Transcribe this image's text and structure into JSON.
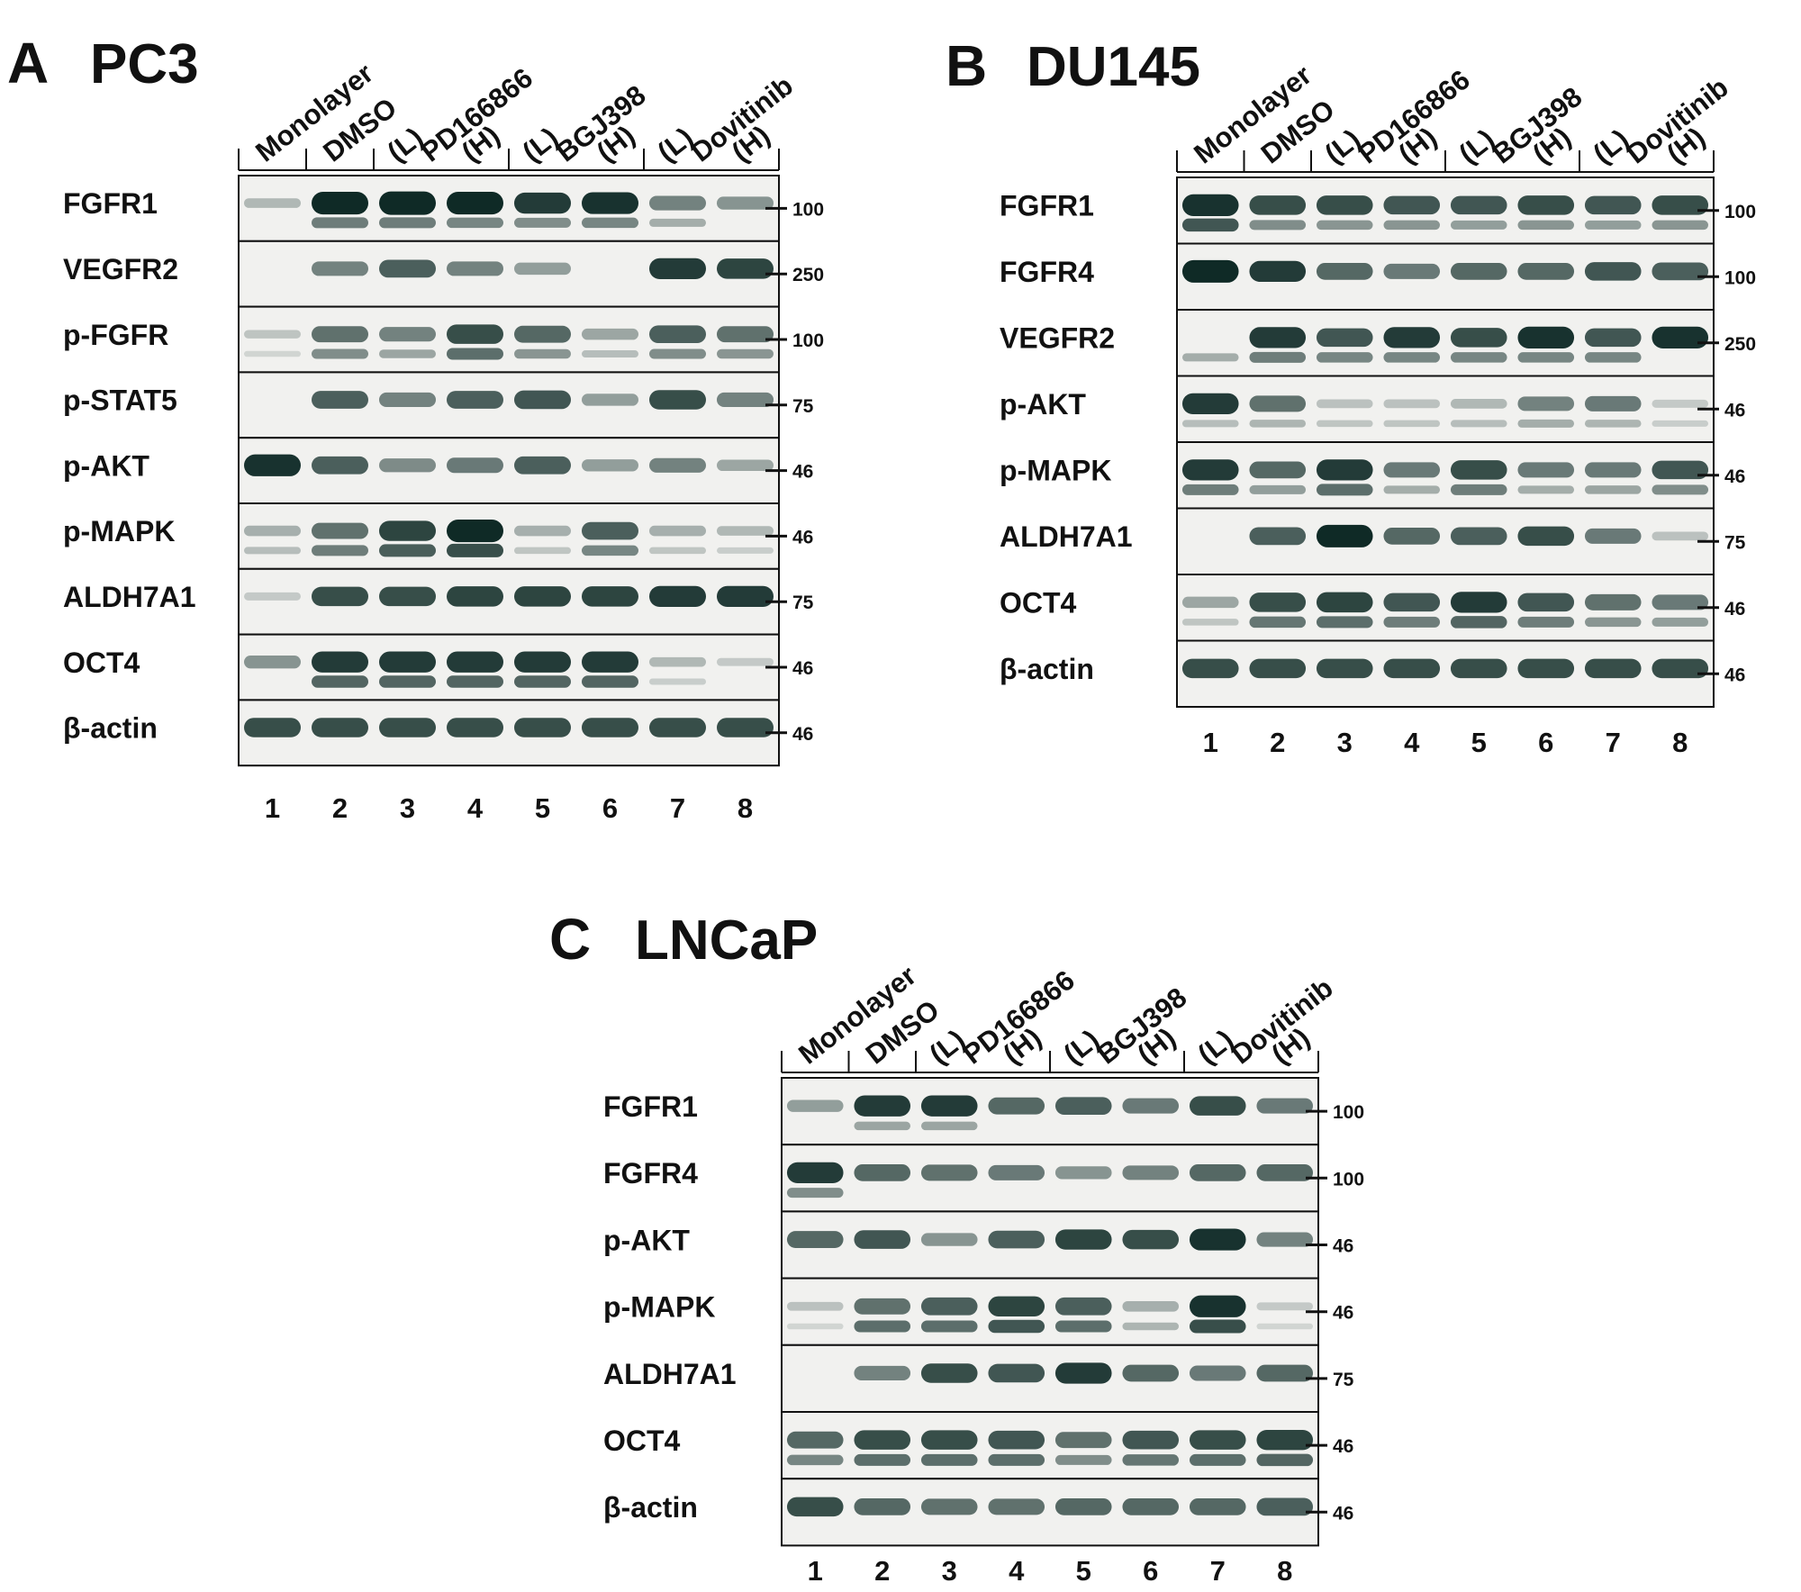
{
  "panels": [
    {
      "letter": "A",
      "cell_line": "PC3",
      "headers": [
        "Monolayer",
        "DMSO",
        "(L)",
        "PD166866",
        "(H)",
        "(L)",
        "BGJ398",
        "(H)",
        "(L)",
        "Dovitinib",
        "(H)"
      ],
      "lanes": [
        "1",
        "2",
        "3",
        "4",
        "5",
        "6",
        "7",
        "8"
      ],
      "rows": [
        {
          "label": "FGFR1",
          "mw": "100",
          "intensity": [
            0.15,
            0.95,
            1.0,
            0.95,
            0.85,
            0.9,
            0.45,
            0.35
          ],
          "secondary": [
            0.0,
            0.6,
            0.6,
            0.55,
            0.5,
            0.55,
            0.3,
            0.0
          ]
        },
        {
          "label": "VEGFR2",
          "mw": "250",
          "intensity": [
            0.0,
            0.45,
            0.65,
            0.45,
            0.3,
            0.0,
            0.85,
            0.8
          ],
          "secondary": [
            0,
            0,
            0,
            0,
            0,
            0,
            0,
            0
          ]
        },
        {
          "label": "p-FGFR",
          "mw": "100",
          "intensity": [
            0.08,
            0.55,
            0.45,
            0.75,
            0.6,
            0.25,
            0.65,
            0.55
          ],
          "secondary": [
            0.05,
            0.5,
            0.35,
            0.7,
            0.45,
            0.2,
            0.5,
            0.45
          ]
        },
        {
          "label": "p-STAT5",
          "mw": "75",
          "intensity": [
            0.0,
            0.65,
            0.45,
            0.65,
            0.7,
            0.3,
            0.75,
            0.45
          ],
          "secondary": [
            0,
            0,
            0,
            0,
            0,
            0,
            0,
            0
          ]
        },
        {
          "label": "p-AKT",
          "mw": "46",
          "intensity": [
            0.9,
            0.65,
            0.4,
            0.5,
            0.65,
            0.3,
            0.45,
            0.25
          ],
          "secondary": [
            0,
            0,
            0,
            0,
            0,
            0,
            0,
            0
          ]
        },
        {
          "label": "p-MAPK",
          "mw": "46",
          "intensity": [
            0.2,
            0.55,
            0.8,
            0.95,
            0.2,
            0.65,
            0.2,
            0.15
          ],
          "secondary": [
            0.2,
            0.6,
            0.8,
            0.9,
            0.15,
            0.55,
            0.15,
            0.1
          ]
        },
        {
          "label": "ALDH7A1",
          "mw": "75",
          "intensity": [
            0.05,
            0.75,
            0.75,
            0.8,
            0.8,
            0.8,
            0.85,
            0.85
          ],
          "secondary": [
            0,
            0,
            0,
            0,
            0,
            0,
            0,
            0
          ]
        },
        {
          "label": "OCT4",
          "mw": "46",
          "intensity": [
            0.35,
            0.85,
            0.85,
            0.85,
            0.85,
            0.85,
            0.15,
            0.05
          ],
          "secondary": [
            0.0,
            0.75,
            0.75,
            0.75,
            0.75,
            0.75,
            0.1,
            0.0
          ]
        },
        {
          "label": "β-actin",
          "mw": "46",
          "intensity": [
            0.75,
            0.75,
            0.75,
            0.75,
            0.75,
            0.75,
            0.75,
            0.75
          ],
          "secondary": [
            0,
            0,
            0,
            0,
            0,
            0,
            0,
            0
          ]
        }
      ]
    },
    {
      "letter": "B",
      "cell_line": "DU145",
      "headers": [
        "Monolayer",
        "DMSO",
        "(L)",
        "PD166866",
        "(H)",
        "(L)",
        "BGJ398",
        "(H)",
        "(L)",
        "Dovitinib",
        "(H)"
      ],
      "lanes": [
        "1",
        "2",
        "3",
        "4",
        "5",
        "6",
        "7",
        "8"
      ],
      "rows": [
        {
          "label": "FGFR1",
          "mw": "100",
          "intensity": [
            0.9,
            0.75,
            0.75,
            0.7,
            0.7,
            0.75,
            0.7,
            0.75
          ],
          "secondary": [
            0.85,
            0.5,
            0.45,
            0.45,
            0.4,
            0.45,
            0.4,
            0.45
          ]
        },
        {
          "label": "FGFR4",
          "mw": "100",
          "intensity": [
            0.95,
            0.85,
            0.6,
            0.5,
            0.6,
            0.6,
            0.7,
            0.65
          ],
          "secondary": [
            0,
            0,
            0,
            0,
            0,
            0,
            0,
            0
          ]
        },
        {
          "label": "VEGFR2",
          "mw": "250",
          "intensity": [
            0.0,
            0.85,
            0.7,
            0.85,
            0.75,
            0.9,
            0.7,
            0.9
          ],
          "secondary": [
            0.3,
            0.6,
            0.55,
            0.55,
            0.55,
            0.55,
            0.55,
            0.0
          ]
        },
        {
          "label": "p-AKT",
          "mw": "46",
          "intensity": [
            0.85,
            0.55,
            0.1,
            0.1,
            0.15,
            0.45,
            0.5,
            0.05
          ],
          "secondary": [
            0.2,
            0.25,
            0.15,
            0.15,
            0.2,
            0.3,
            0.25,
            0.1
          ]
        },
        {
          "label": "p-MAPK",
          "mw": "46",
          "intensity": [
            0.85,
            0.6,
            0.85,
            0.5,
            0.75,
            0.5,
            0.5,
            0.7
          ],
          "secondary": [
            0.6,
            0.4,
            0.7,
            0.3,
            0.6,
            0.3,
            0.35,
            0.5
          ]
        },
        {
          "label": "ALDH7A1",
          "mw": "75",
          "intensity": [
            0.0,
            0.65,
            0.95,
            0.6,
            0.65,
            0.75,
            0.5,
            0.1
          ],
          "secondary": [
            0,
            0,
            0,
            0,
            0,
            0,
            0,
            0
          ]
        },
        {
          "label": "OCT4",
          "mw": "46",
          "intensity": [
            0.25,
            0.75,
            0.8,
            0.7,
            0.85,
            0.7,
            0.55,
            0.5
          ],
          "secondary": [
            0.15,
            0.65,
            0.7,
            0.6,
            0.75,
            0.6,
            0.45,
            0.4
          ]
        },
        {
          "label": "β-actin",
          "mw": "46",
          "intensity": [
            0.75,
            0.75,
            0.75,
            0.75,
            0.75,
            0.75,
            0.75,
            0.75
          ],
          "secondary": [
            0,
            0,
            0,
            0,
            0,
            0,
            0,
            0
          ]
        }
      ]
    },
    {
      "letter": "C",
      "cell_line": "LNCaP",
      "headers": [
        "Monolayer",
        "DMSO",
        "(L)",
        "PD166866",
        "(H)",
        "(L)",
        "BGJ398",
        "(H)",
        "(L)",
        "Dovitinib",
        "(H)"
      ],
      "lanes": [
        "1",
        "2",
        "3",
        "4",
        "5",
        "6",
        "7",
        "8"
      ],
      "rows": [
        {
          "label": "FGFR1",
          "mw": "100",
          "intensity": [
            0.3,
            0.85,
            0.85,
            0.6,
            0.65,
            0.5,
            0.75,
            0.5
          ],
          "secondary": [
            0.0,
            0.35,
            0.35,
            0.0,
            0.0,
            0.0,
            0.0,
            0.0
          ]
        },
        {
          "label": "FGFR4",
          "mw": "100",
          "intensity": [
            0.85,
            0.6,
            0.55,
            0.5,
            0.35,
            0.45,
            0.6,
            0.6
          ],
          "secondary": [
            0.5,
            0,
            0,
            0,
            0,
            0,
            0,
            0
          ]
        },
        {
          "label": "p-AKT",
          "mw": "46",
          "intensity": [
            0.6,
            0.7,
            0.35,
            0.65,
            0.8,
            0.75,
            0.9,
            0.45
          ],
          "secondary": [
            0,
            0,
            0,
            0,
            0,
            0,
            0,
            0
          ]
        },
        {
          "label": "p-MAPK",
          "mw": "46",
          "intensity": [
            0.1,
            0.55,
            0.65,
            0.8,
            0.65,
            0.2,
            0.9,
            0.05
          ],
          "secondary": [
            0.05,
            0.7,
            0.7,
            0.85,
            0.7,
            0.25,
            0.9,
            0.05
          ]
        },
        {
          "label": "ALDH7A1",
          "mw": "75",
          "intensity": [
            0.0,
            0.45,
            0.75,
            0.7,
            0.85,
            0.6,
            0.5,
            0.6
          ],
          "secondary": [
            0,
            0,
            0,
            0,
            0,
            0,
            0,
            0
          ]
        },
        {
          "label": "OCT4",
          "mw": "46",
          "intensity": [
            0.6,
            0.75,
            0.75,
            0.7,
            0.55,
            0.7,
            0.75,
            0.8
          ],
          "secondary": [
            0.55,
            0.7,
            0.7,
            0.7,
            0.5,
            0.65,
            0.7,
            0.75
          ]
        },
        {
          "label": "β-actin",
          "mw": "46",
          "intensity": [
            0.75,
            0.6,
            0.55,
            0.55,
            0.6,
            0.6,
            0.6,
            0.65
          ],
          "secondary": [
            0,
            0,
            0,
            0,
            0,
            0,
            0,
            0
          ]
        }
      ]
    }
  ],
  "colors": {
    "band": "#0f2a26",
    "blot_background": "#f1f1ef",
    "border": "#111111"
  }
}
